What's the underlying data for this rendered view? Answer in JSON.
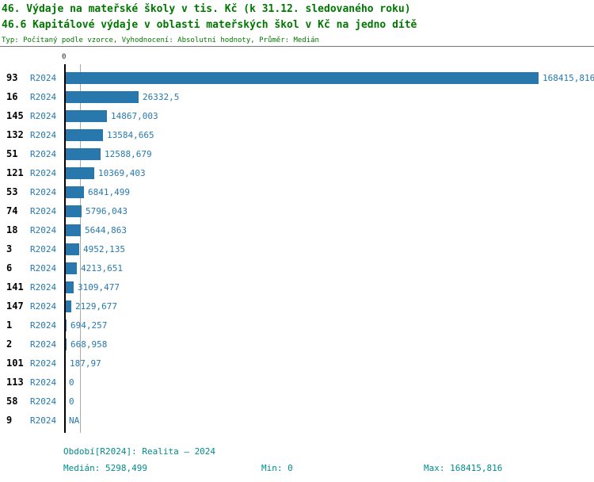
{
  "header": {
    "title_line1": "46. Výdaje na mateřské školy v tis. Kč (k 31.12. sledovaného roku)",
    "title_line2": "46.6 Kapitálové výdaje v oblasti mateřských škol v Kč na jedno dítě",
    "subtitle": "Typ: Počítaný podle vzorce, Vyhodnocení: Absolutní hodnoty, Průměr: Medián"
  },
  "chart_data": {
    "type": "bar",
    "orientation": "horizontal",
    "title": "46.6 Kapitálové výdaje v oblasti mateřských škol v Kč na jedno dítě",
    "xlabel": "",
    "ylabel": "",
    "xlim": [
      0,
      168415.816
    ],
    "axis_tick_label": "0",
    "median": 5298.499,
    "legend": "none",
    "grid": "single vertical median line",
    "rows": [
      {
        "id": "93",
        "period": "R2024",
        "value": 168415.816,
        "label": "168415,816"
      },
      {
        "id": "16",
        "period": "R2024",
        "value": 26332.5,
        "label": "26332,5"
      },
      {
        "id": "145",
        "period": "R2024",
        "value": 14867.003,
        "label": "14867,003"
      },
      {
        "id": "132",
        "period": "R2024",
        "value": 13584.665,
        "label": "13584,665"
      },
      {
        "id": "51",
        "period": "R2024",
        "value": 12588.679,
        "label": "12588,679"
      },
      {
        "id": "121",
        "period": "R2024",
        "value": 10369.403,
        "label": "10369,403"
      },
      {
        "id": "53",
        "period": "R2024",
        "value": 6841.499,
        "label": "6841,499"
      },
      {
        "id": "74",
        "period": "R2024",
        "value": 5796.043,
        "label": "5796,043"
      },
      {
        "id": "18",
        "period": "R2024",
        "value": 5644.863,
        "label": "5644,863"
      },
      {
        "id": "3",
        "period": "R2024",
        "value": 4952.135,
        "label": "4952,135"
      },
      {
        "id": "6",
        "period": "R2024",
        "value": 4213.651,
        "label": "4213,651"
      },
      {
        "id": "141",
        "period": "R2024",
        "value": 3109.477,
        "label": "3109,477"
      },
      {
        "id": "147",
        "period": "R2024",
        "value": 2129.677,
        "label": "2129,677"
      },
      {
        "id": "1",
        "period": "R2024",
        "value": 694.257,
        "label": "694,257"
      },
      {
        "id": "2",
        "period": "R2024",
        "value": 668.958,
        "label": "668,958"
      },
      {
        "id": "101",
        "period": "R2024",
        "value": 187.97,
        "label": "187,97"
      },
      {
        "id": "113",
        "period": "R2024",
        "value": 0,
        "label": "0"
      },
      {
        "id": "58",
        "period": "R2024",
        "value": 0,
        "label": "0"
      },
      {
        "id": "9",
        "period": "R2024",
        "value": null,
        "label": "NA"
      }
    ]
  },
  "footer": {
    "period": "Období[R2024]: Realita – 2024",
    "median": "Medián: 5298,499",
    "min": "Min: 0",
    "max": "Max: 168415,816"
  },
  "colors": {
    "bar": "#2878ae",
    "title": "#007700",
    "footer": "#008b8b",
    "axis": "#000000",
    "median_line": "#aaaaaa"
  }
}
